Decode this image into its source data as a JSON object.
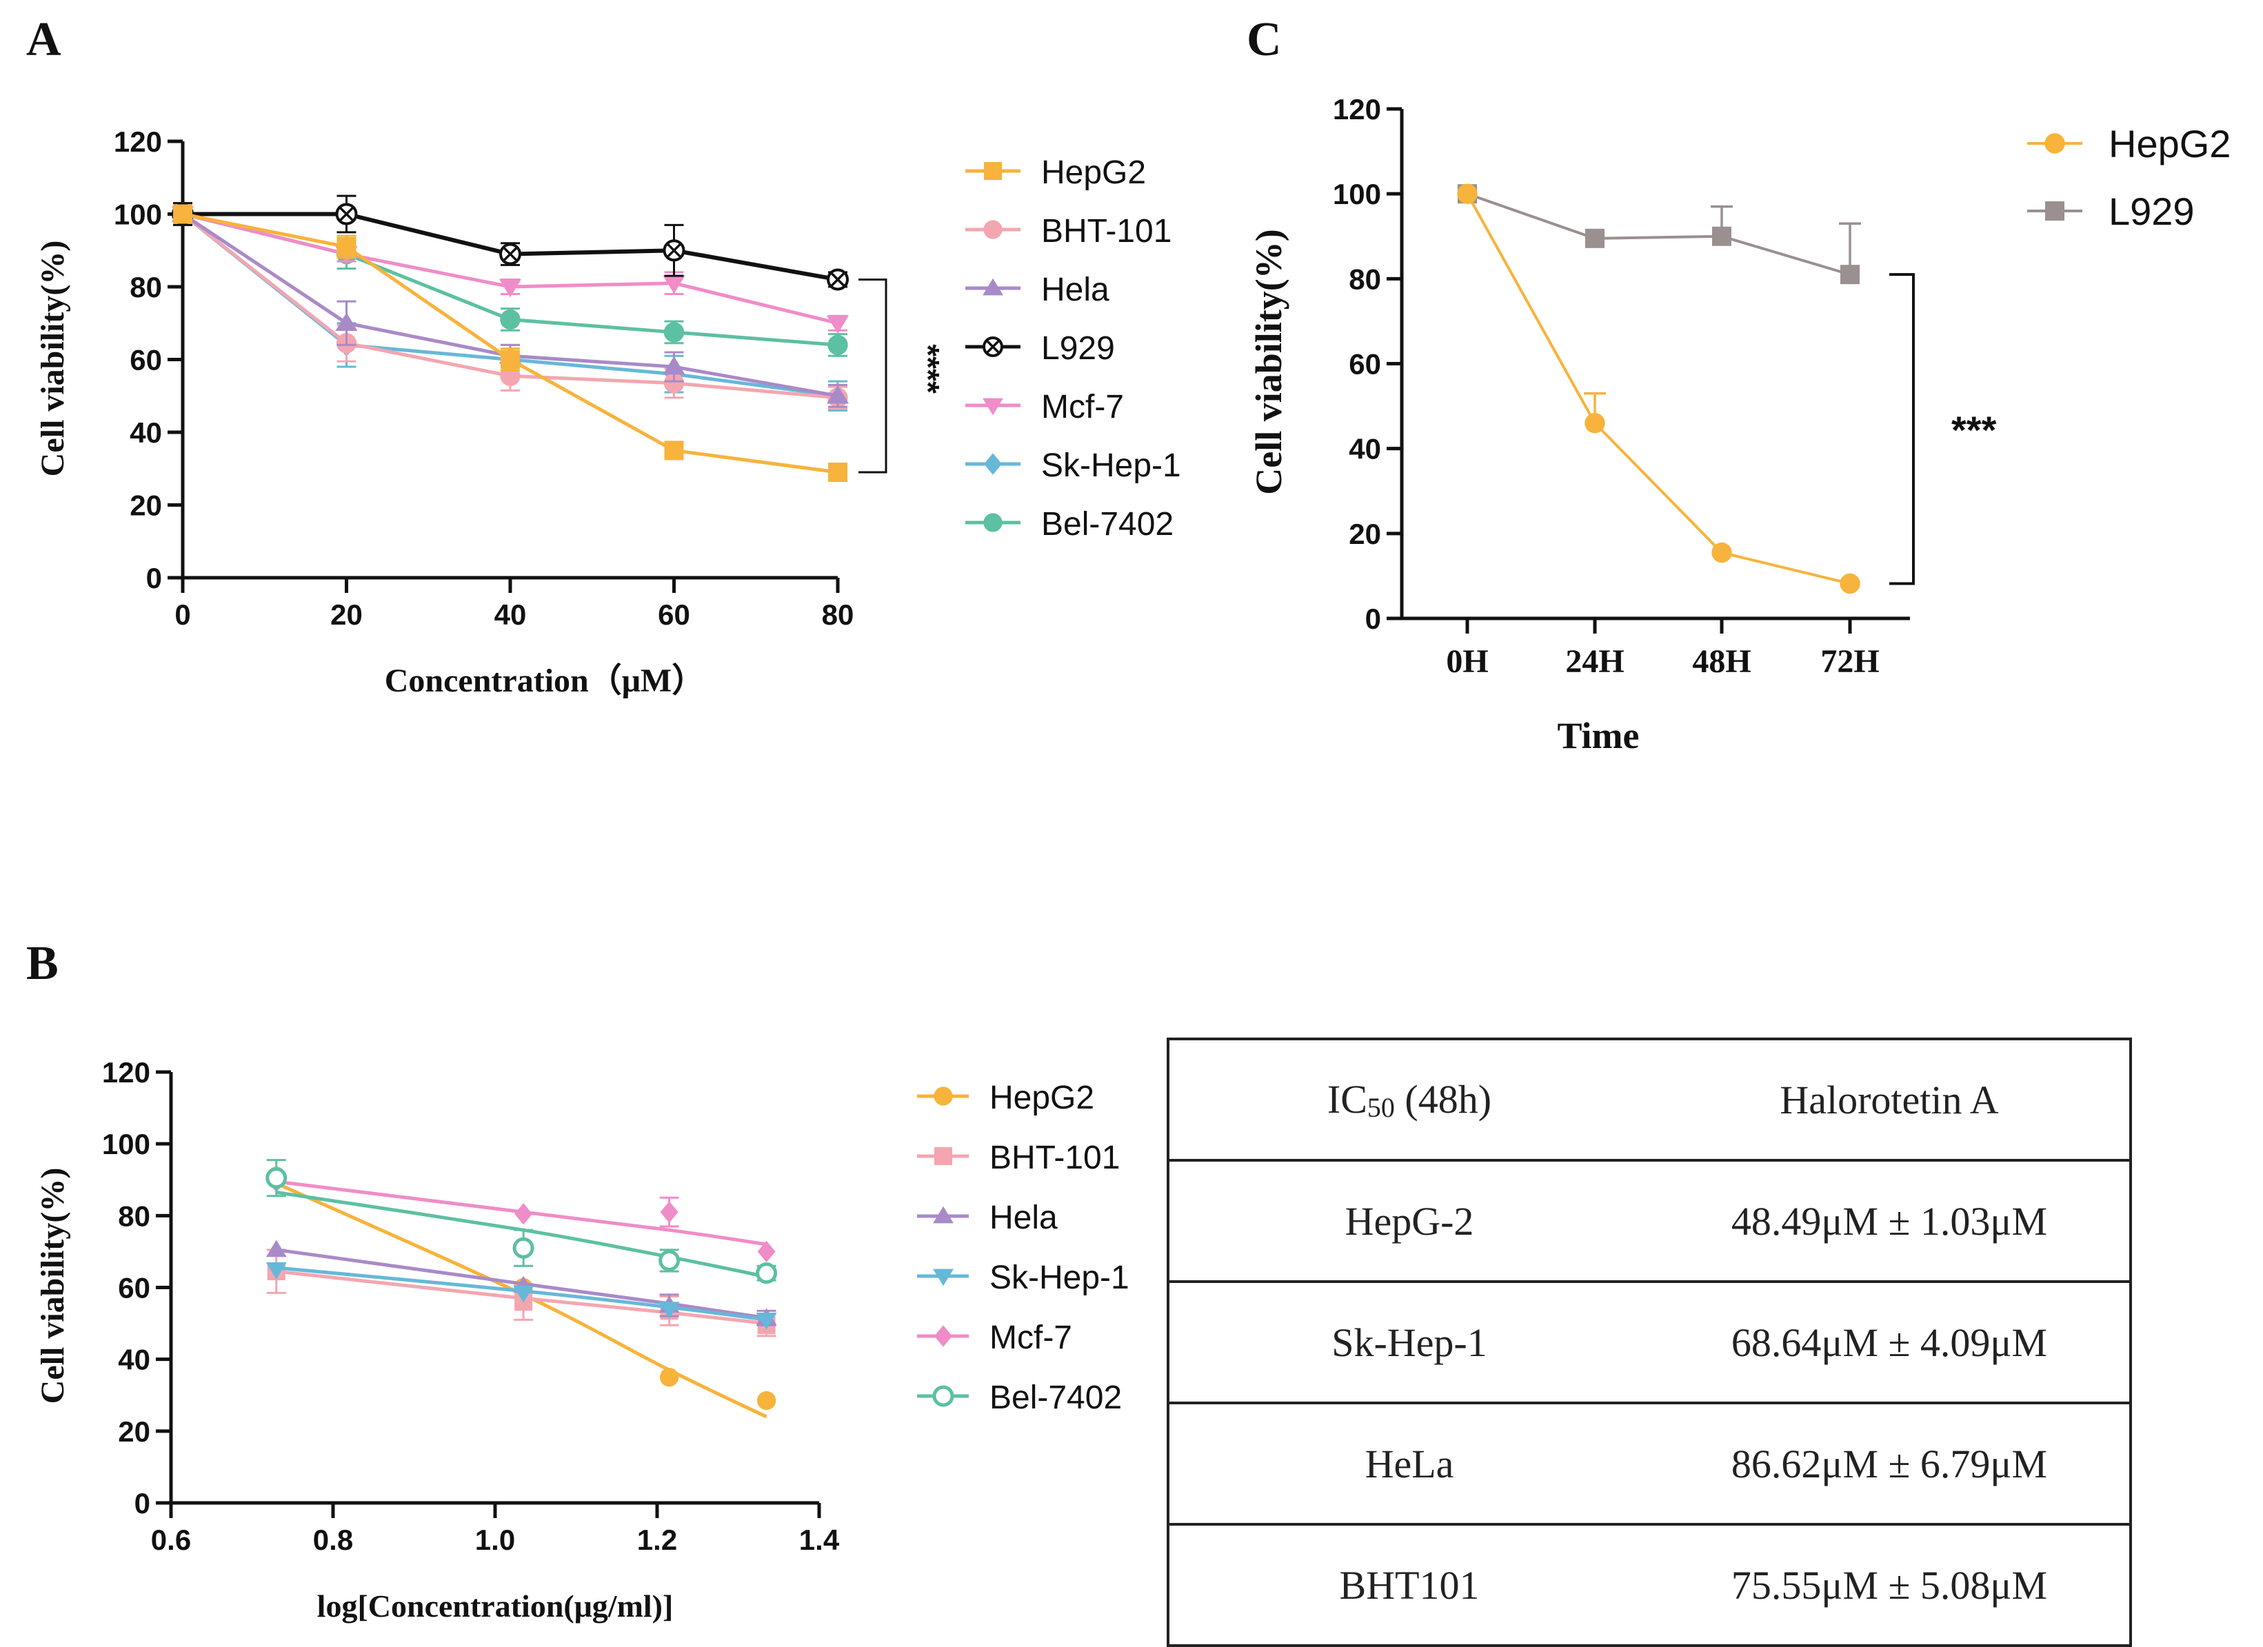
{
  "panels": {
    "A": {
      "label": "A"
    },
    "B": {
      "label": "B"
    },
    "C": {
      "label": "C"
    }
  },
  "colors": {
    "HepG2": "#F7B33B",
    "BHT-101": "#F4A6B0",
    "Hela": "#A98AC8",
    "L929": "#111111",
    "Mcf-7": "#F08CC8",
    "Sk-Hep-1": "#66B8D8",
    "Bel-7402": "#5CC0A2",
    "L929_C": "#9A9090"
  },
  "chart_data": [
    {
      "id": "A",
      "type": "line",
      "xlabel": "Concentration（μM）",
      "ylabel": "Cell viability(%)",
      "xlim": [
        0,
        80
      ],
      "ylim": [
        0,
        120
      ],
      "xticks": [
        0,
        20,
        40,
        60,
        80
      ],
      "yticks": [
        0,
        20,
        40,
        60,
        80,
        100,
        120
      ],
      "x": [
        0,
        20,
        40,
        60,
        80
      ],
      "series": [
        {
          "name": "HepG2",
          "marker": "square",
          "values": [
            100,
            91,
            60,
            35,
            29
          ],
          "err": [
            2,
            3,
            3,
            2,
            2
          ]
        },
        {
          "name": "BHT-101",
          "marker": "circle",
          "values": [
            100,
            64.5,
            55.5,
            53.5,
            49.5
          ],
          "err": [
            2,
            5,
            4,
            4,
            3
          ]
        },
        {
          "name": "Hela",
          "marker": "triangle",
          "values": [
            100,
            70,
            61,
            58,
            50
          ],
          "err": [
            2,
            6,
            3,
            4,
            3
          ]
        },
        {
          "name": "L929",
          "marker": "circlex",
          "values": [
            100,
            100,
            89,
            90,
            82
          ],
          "err": [
            3,
            5,
            3,
            7,
            2
          ]
        },
        {
          "name": "Mcf-7",
          "marker": "tridown",
          "values": [
            100,
            89,
            80,
            81,
            70
          ],
          "err": [
            2,
            2,
            2,
            3,
            2
          ]
        },
        {
          "name": "Sk-Hep-1",
          "marker": "diamond",
          "values": [
            100,
            64,
            60,
            56,
            50
          ],
          "err": [
            3,
            6,
            4,
            5,
            4
          ]
        },
        {
          "name": "Bel-7402",
          "marker": "dot",
          "values": [
            100,
            89,
            71,
            67.5,
            64
          ],
          "err": [
            2,
            4,
            3,
            3,
            3
          ]
        }
      ],
      "annotation": "****"
    },
    {
      "id": "B",
      "type": "scatter",
      "xlabel": "log[Concentration(μg/ml)]",
      "ylabel": "Cell viability(%)",
      "xlim": [
        0.6,
        1.4
      ],
      "ylim": [
        0,
        120
      ],
      "xticks": [
        "0.6",
        "0.8",
        "1.0",
        "1.2",
        "1.4"
      ],
      "yticks": [
        0,
        20,
        40,
        60,
        80,
        100,
        120
      ],
      "x": [
        0.73,
        1.035,
        1.215,
        1.335
      ],
      "series": [
        {
          "name": "HepG2",
          "marker": "dot",
          "values": [
            91,
            60,
            35,
            28.5
          ],
          "err": [
            0,
            0,
            0,
            0
          ],
          "fit": [
            89,
            58,
            37,
            24
          ]
        },
        {
          "name": "BHT-101",
          "marker": "square",
          "values": [
            64.5,
            56,
            53.5,
            49.5
          ],
          "err": [
            6,
            5,
            4,
            3
          ],
          "fit": [
            64.5,
            57,
            53,
            50
          ]
        },
        {
          "name": "Hela",
          "marker": "triangle",
          "values": [
            70.5,
            60.5,
            55,
            51.5
          ],
          "err": [
            0,
            0,
            3,
            2
          ],
          "fit": [
            70.5,
            61,
            55.5,
            51.5
          ]
        },
        {
          "name": "Sk-Hep-1",
          "marker": "tridown",
          "values": [
            65,
            58.5,
            54,
            51
          ],
          "err": [
            0,
            0,
            0,
            0
          ],
          "fit": [
            65.5,
            59,
            54.5,
            51
          ]
        },
        {
          "name": "Mcf-7",
          "marker": "diamond",
          "values": [
            89.5,
            80.5,
            81,
            70
          ],
          "err": [
            0,
            0,
            4,
            0
          ],
          "fit": [
            89.5,
            81,
            76,
            72
          ]
        },
        {
          "name": "Bel-7402",
          "marker": "ring",
          "values": [
            90.5,
            71,
            67.5,
            64
          ],
          "err": [
            5,
            5,
            3,
            2
          ],
          "fit": [
            86.5,
            76,
            68.5,
            63
          ]
        }
      ]
    },
    {
      "id": "C",
      "type": "line",
      "xlabel": "Time",
      "ylabel": "Cell viability(%)",
      "ylim": [
        0,
        120
      ],
      "categories": [
        "0H",
        "24H",
        "48H",
        "72H"
      ],
      "yticks": [
        0,
        20,
        40,
        60,
        80,
        100,
        120
      ],
      "series": [
        {
          "name": "HepG2",
          "marker": "dot",
          "values": [
            100,
            46,
            15.5,
            8.2
          ],
          "err": [
            0,
            7,
            0,
            0
          ]
        },
        {
          "name": "L929",
          "marker": "square",
          "values": [
            100,
            89.5,
            90,
            81
          ],
          "err": [
            0,
            0,
            7,
            12
          ]
        }
      ],
      "annotation": "***"
    }
  ],
  "table": {
    "header": [
      "IC50 (48h)",
      "Halorotetin A"
    ],
    "header_main": "IC",
    "header_sub": "50",
    "header_tail": " (48h)",
    "rows": [
      {
        "cell": "HepG-2",
        "value": "48.49μM ± 1.03μM"
      },
      {
        "cell": "Sk-Hep-1",
        "value": "68.64μM ± 4.09μM"
      },
      {
        "cell": "HeLa",
        "value": "86.62μM ± 6.79μM"
      },
      {
        "cell": "BHT101",
        "value": "75.55μM ± 5.08μM"
      }
    ]
  }
}
